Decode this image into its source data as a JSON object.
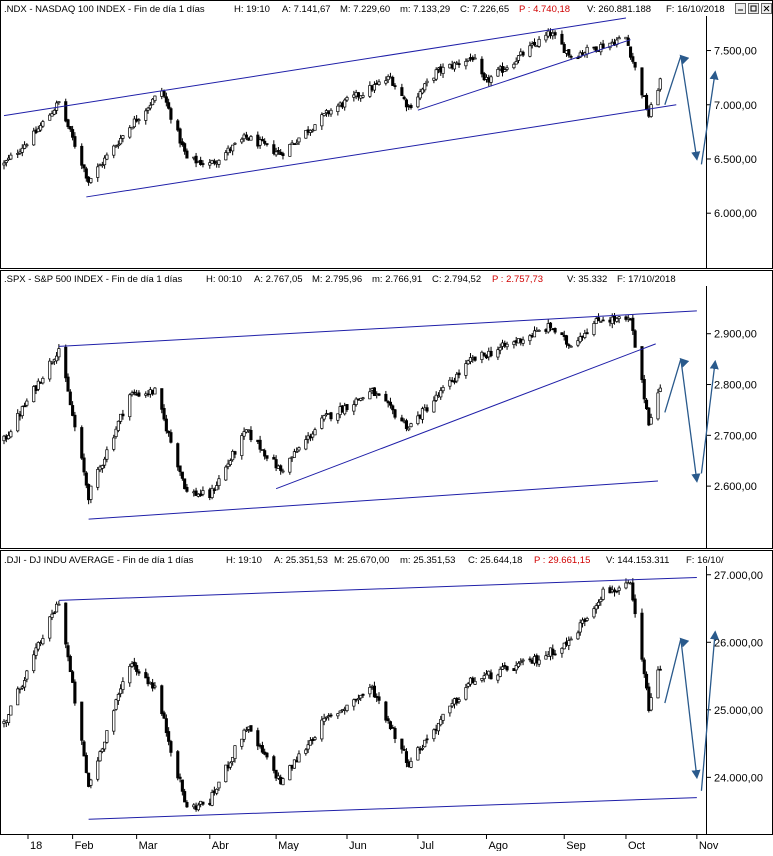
{
  "panels": [
    {
      "id": "ndx",
      "header": {
        "name": ".NDX - NASDAQ 100 INDEX - Fin de día 1 días",
        "h": "H: 19:10",
        "a": "A: 7.141,67",
        "m": "M: 7.229,60",
        "min": "m: 7.133,29",
        "c": "C: 7.226,65",
        "p": "P : 4.740,18",
        "v": "V: 260.881.188",
        "f": "F: 16/10/2018"
      },
      "y_ticks": [
        {
          "value": 7500,
          "label": "7.500,00"
        },
        {
          "value": 7000,
          "label": "7.000,00"
        },
        {
          "value": 6500,
          "label": "6.500,00"
        },
        {
          "value": 6000,
          "label": "6.000,00"
        }
      ]
    },
    {
      "id": "spx",
      "header": {
        "name": ".SPX - S&P 500 INDEX - Fin de día 1 días",
        "h": "H: 00:10",
        "a": "A: 2.767,05",
        "m": "M: 2.795,96",
        "min": "m: 2.766,91",
        "c": "C: 2.794,52",
        "p": "P : 2.757,73",
        "v": "V: 35.332",
        "f": "F: 17/10/2018"
      },
      "y_ticks": [
        {
          "value": 2900,
          "label": "2.900,00"
        },
        {
          "value": 2800,
          "label": "2.800,00"
        },
        {
          "value": 2700,
          "label": "2.700,00"
        },
        {
          "value": 2600,
          "label": "2.600,00"
        }
      ]
    },
    {
      "id": "dji",
      "header": {
        "name": ".DJI - DJ INDU AVERAGE - Fin de día 1 días",
        "h": "H: 19:10",
        "a": "A: 25.351,53",
        "m": "M: 25.670,00",
        "min": "m: 25.351,53",
        "c": "C: 25.644,18",
        "p": "P : 29.661,15",
        "v": "V: 144.153.311",
        "f": "F: 16/10/"
      },
      "y_ticks": [
        {
          "value": 27000,
          "label": "27.000,00"
        },
        {
          "value": 26000,
          "label": "26.000,00"
        },
        {
          "value": 25000,
          "label": "25.000,00"
        },
        {
          "value": 24000,
          "label": "24.000,00"
        }
      ]
    }
  ],
  "x_axis": {
    "labels": [
      "18",
      "Feb",
      "Mar",
      "Abr",
      "May",
      "Jun",
      "Jul",
      "Ago",
      "Sep",
      "Oct",
      "Nov"
    ]
  },
  "colors": {
    "trendline": "#1f1fa8",
    "projection_arrow": "#2a5a8c",
    "header_price": "#d00000",
    "candle": "#000000"
  },
  "chart_data": [
    {
      "type": "candlestick",
      "series_id": "ndx",
      "x_range": [
        "2018-01-02",
        "2018-11-05"
      ],
      "ylim": [
        5550,
        7800
      ],
      "close_path": [
        [
          "2018-01-02",
          6450
        ],
        [
          "2018-01-15",
          6720
        ],
        [
          "2018-01-26",
          7020
        ],
        [
          "2018-02-08",
          6300
        ],
        [
          "2018-02-26",
          6800
        ],
        [
          "2018-03-12",
          7130
        ],
        [
          "2018-03-23",
          6500
        ],
        [
          "2018-04-02",
          6450
        ],
        [
          "2018-04-18",
          6700
        ],
        [
          "2018-05-03",
          6550
        ],
        [
          "2018-05-25",
          6950
        ],
        [
          "2018-06-20",
          7250
        ],
        [
          "2018-06-28",
          6980
        ],
        [
          "2018-07-10",
          7300
        ],
        [
          "2018-07-26",
          7440
        ],
        [
          "2018-07-31",
          7200
        ],
        [
          "2018-08-29",
          7660
        ],
        [
          "2018-09-07",
          7450
        ],
        [
          "2018-10-01",
          7620
        ],
        [
          "2018-10-11",
          6900
        ],
        [
          "2018-10-16",
          7226
        ]
      ],
      "trendlines": [
        {
          "from": [
            "2018-01-02",
            6900
          ],
          "to": [
            "2018-10-01",
            7800
          ]
        },
        {
          "from": [
            "2018-02-07",
            6150
          ],
          "to": [
            "2018-10-23",
            7000
          ]
        },
        {
          "from": [
            "2018-07-02",
            6950
          ],
          "to": [
            "2018-10-03",
            7600
          ]
        }
      ],
      "projection": [
        [
          "2018-10-18",
          7000
        ],
        [
          "2018-10-25",
          7450
        ],
        [
          "2018-11-01",
          6500
        ],
        [
          "2018-11-03",
          6450
        ],
        [
          "2018-11-09",
          7300
        ]
      ]
    },
    {
      "type": "candlestick",
      "series_id": "spx",
      "x_range": [
        "2018-01-02",
        "2018-11-05"
      ],
      "ylim": [
        2490,
        2990
      ],
      "close_path": [
        [
          "2018-01-02",
          2690
        ],
        [
          "2018-01-26",
          2872
        ],
        [
          "2018-02-08",
          2581
        ],
        [
          "2018-02-26",
          2780
        ],
        [
          "2018-03-09",
          2786
        ],
        [
          "2018-03-23",
          2588
        ],
        [
          "2018-04-02",
          2581
        ],
        [
          "2018-04-18",
          2708
        ],
        [
          "2018-05-03",
          2630
        ],
        [
          "2018-05-22",
          2733
        ],
        [
          "2018-06-12",
          2786
        ],
        [
          "2018-06-28",
          2716
        ],
        [
          "2018-07-25",
          2846
        ],
        [
          "2018-08-29",
          2914
        ],
        [
          "2018-09-06",
          2878
        ],
        [
          "2018-09-20",
          2930
        ],
        [
          "2018-10-03",
          2925
        ],
        [
          "2018-10-11",
          2728
        ],
        [
          "2018-10-16",
          2794
        ]
      ],
      "trendlines": [
        {
          "from": [
            "2018-01-26",
            2875
          ],
          "to": [
            "2018-11-01",
            2945
          ]
        },
        {
          "from": [
            "2018-02-08",
            2535
          ],
          "to": [
            "2018-10-15",
            2610
          ]
        },
        {
          "from": [
            "2018-05-01",
            2595
          ],
          "to": [
            "2018-10-14",
            2880
          ]
        }
      ],
      "projection": [
        [
          "2018-10-18",
          2745
        ],
        [
          "2018-10-25",
          2850
        ],
        [
          "2018-11-01",
          2610
        ],
        [
          "2018-11-03",
          2625
        ],
        [
          "2018-11-09",
          2845
        ]
      ]
    },
    {
      "type": "candlestick",
      "series_id": "dji",
      "x_range": [
        "2018-01-02",
        "2018-11-05"
      ],
      "ylim": [
        23250,
        27100
      ],
      "close_path": [
        [
          "2018-01-02",
          24800
        ],
        [
          "2018-01-26",
          26616
        ],
        [
          "2018-02-08",
          23860
        ],
        [
          "2018-02-26",
          25709
        ],
        [
          "2018-03-09",
          25335
        ],
        [
          "2018-03-23",
          23533
        ],
        [
          "2018-04-02",
          23644
        ],
        [
          "2018-04-18",
          24748
        ],
        [
          "2018-05-03",
          23930
        ],
        [
          "2018-05-22",
          24834
        ],
        [
          "2018-06-12",
          25320
        ],
        [
          "2018-06-28",
          24216
        ],
        [
          "2018-07-25",
          25415
        ],
        [
          "2018-08-22",
          25733
        ],
        [
          "2018-09-06",
          25995
        ],
        [
          "2018-09-21",
          26744
        ],
        [
          "2018-10-03",
          26828
        ],
        [
          "2018-10-11",
          25052
        ],
        [
          "2018-10-16",
          25644
        ]
      ],
      "trendlines": [
        {
          "from": [
            "2018-01-26",
            26620
          ],
          "to": [
            "2018-11-01",
            26960
          ]
        },
        {
          "from": [
            "2018-02-08",
            23380
          ],
          "to": [
            "2018-11-01",
            23700
          ]
        }
      ],
      "projection": [
        [
          "2018-10-18",
          25100
        ],
        [
          "2018-10-25",
          26050
        ],
        [
          "2018-11-01",
          24000
        ],
        [
          "2018-11-03",
          23800
        ],
        [
          "2018-11-09",
          26150
        ]
      ]
    }
  ]
}
